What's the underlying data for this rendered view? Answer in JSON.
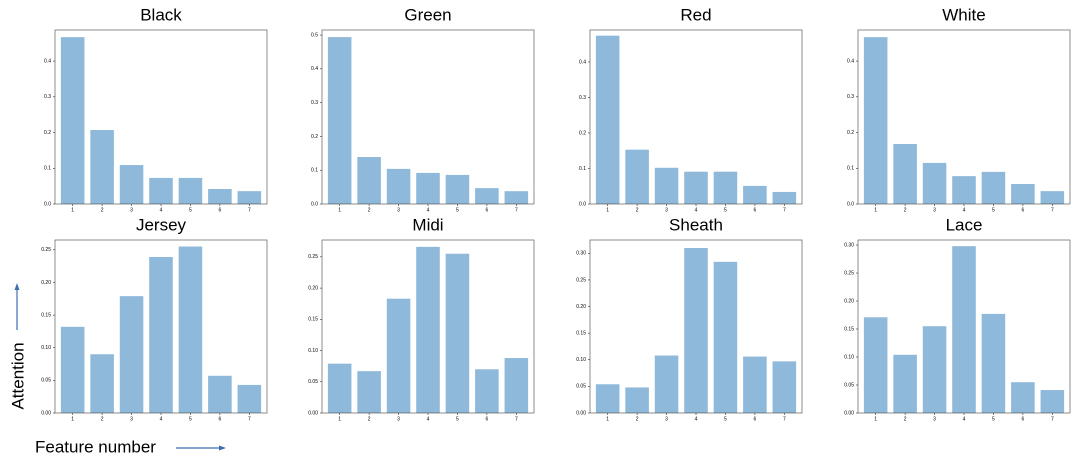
{
  "y_label": "Attention",
  "x_label": "Feature number",
  "chart_data": [
    {
      "type": "bar",
      "title": "Black",
      "categories": [
        1,
        2,
        3,
        4,
        5,
        6,
        7
      ],
      "values": [
        0.467,
        0.207,
        0.109,
        0.073,
        0.073,
        0.042,
        0.036
      ],
      "color": "#8fb9da",
      "ylim": [
        0,
        0.487
      ],
      "yticks": [
        {
          "value": 0,
          "label": "0.0"
        },
        0.1,
        0.2,
        0.3,
        0.4
      ]
    },
    {
      "type": "bar",
      "title": "Green",
      "categories": [
        1,
        2,
        3,
        4,
        5,
        6,
        7
      ],
      "values": [
        0.494,
        0.139,
        0.104,
        0.092,
        0.086,
        0.047,
        0.038
      ],
      "color": "#8fb9da",
      "ylim": [
        0,
        0.515
      ],
      "yticks": [
        {
          "value": 0,
          "label": "0.0"
        },
        0.1,
        0.2,
        0.3,
        0.4,
        0.5
      ]
    },
    {
      "type": "bar",
      "title": "Red",
      "categories": [
        1,
        2,
        3,
        4,
        5,
        6,
        7
      ],
      "values": [
        0.474,
        0.153,
        0.102,
        0.091,
        0.091,
        0.051,
        0.034
      ],
      "color": "#8fb9da",
      "ylim": [
        0,
        0.49
      ],
      "yticks": [
        {
          "value": 0,
          "label": "0.0"
        },
        0.1,
        0.2,
        0.3,
        0.4
      ]
    },
    {
      "type": "bar",
      "title": "White",
      "categories": [
        1,
        2,
        3,
        4,
        5,
        6,
        7
      ],
      "values": [
        0.467,
        0.168,
        0.115,
        0.078,
        0.09,
        0.056,
        0.036
      ],
      "color": "#8fb9da",
      "ylim": [
        0,
        0.487
      ],
      "yticks": [
        {
          "value": 0,
          "label": "0.0"
        },
        0.1,
        0.2,
        0.3,
        0.4
      ]
    },
    {
      "type": "bar",
      "title": "Jersey",
      "categories": [
        1,
        2,
        3,
        4,
        5,
        6,
        7
      ],
      "values": [
        0.132,
        0.09,
        0.179,
        0.239,
        0.255,
        0.057,
        0.043
      ],
      "color": "#8fb9da",
      "ylim": [
        0,
        0.265
      ],
      "yticks": [
        {
          "value": 0,
          "label": "0.00"
        },
        0.05,
        {
          "value": 0.1,
          "label": "0.10"
        },
        0.15,
        {
          "value": 0.2,
          "label": "0.20"
        },
        0.25
      ]
    },
    {
      "type": "bar",
      "title": "Midi",
      "categories": [
        1,
        2,
        3,
        4,
        5,
        6,
        7
      ],
      "values": [
        0.079,
        0.067,
        0.183,
        0.266,
        0.255,
        0.07,
        0.088
      ],
      "color": "#8fb9da",
      "ylim": [
        0,
        0.277
      ],
      "yticks": [
        {
          "value": 0,
          "label": "0.00"
        },
        0.05,
        {
          "value": 0.1,
          "label": "0.10"
        },
        0.15,
        {
          "value": 0.2,
          "label": "0.20"
        },
        0.25
      ]
    },
    {
      "type": "bar",
      "title": "Sheath",
      "categories": [
        1,
        2,
        3,
        4,
        5,
        6,
        7
      ],
      "values": [
        0.054,
        0.048,
        0.108,
        0.31,
        0.284,
        0.106,
        0.097
      ],
      "color": "#8fb9da",
      "ylim": [
        0,
        0.325
      ],
      "yticks": [
        {
          "value": 0,
          "label": "0.00"
        },
        0.05,
        {
          "value": 0.1,
          "label": "0.10"
        },
        0.15,
        {
          "value": 0.2,
          "label": "0.20"
        },
        0.25,
        {
          "value": 0.3,
          "label": "0.30"
        }
      ]
    },
    {
      "type": "bar",
      "title": "Lace",
      "categories": [
        1,
        2,
        3,
        4,
        5,
        6,
        7
      ],
      "values": [
        0.171,
        0.104,
        0.155,
        0.298,
        0.177,
        0.055,
        0.041
      ],
      "color": "#8fb9da",
      "ylim": [
        0,
        0.309
      ],
      "yticks": [
        {
          "value": 0,
          "label": "0.00"
        },
        0.05,
        {
          "value": 0.1,
          "label": "0.10"
        },
        0.15,
        {
          "value": 0.2,
          "label": "0.20"
        },
        0.25,
        {
          "value": 0.3,
          "label": "0.30"
        }
      ]
    }
  ]
}
